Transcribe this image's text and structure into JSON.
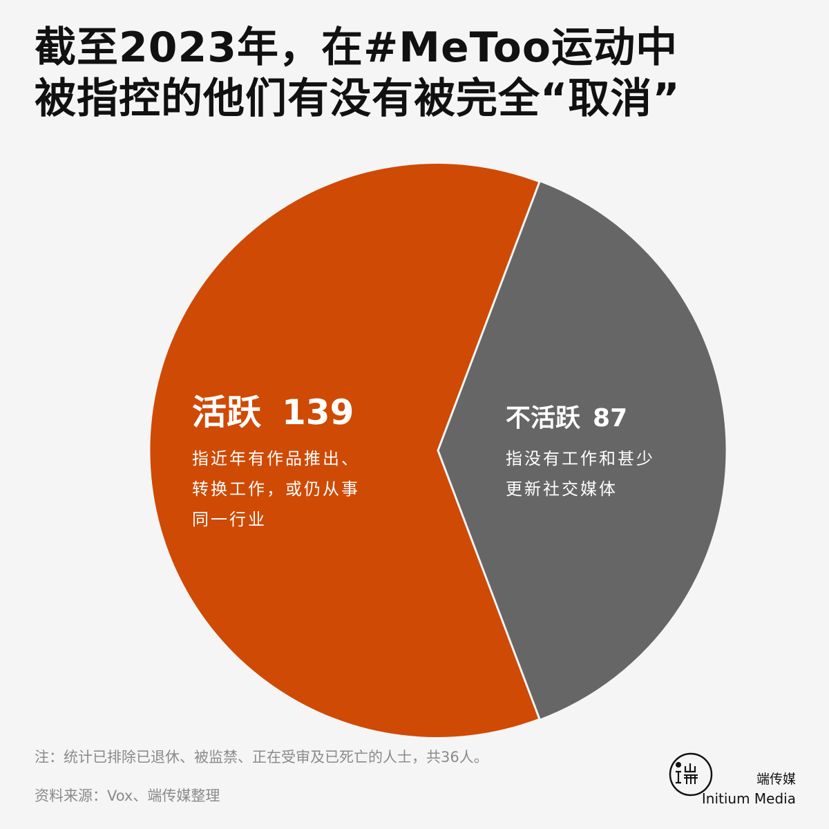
{
  "title": {
    "line1": "截至2023年，在#MeToo运动中",
    "line2": "被指控的他们有没有被完全“取消”"
  },
  "chart_data": {
    "type": "pie",
    "slices": [
      {
        "label": "活跃",
        "value": 139,
        "description_lines": [
          "指近年有作品推出、",
          "转换工作，或仍从事",
          "同一行业"
        ],
        "color": "#cf4a05"
      },
      {
        "label": "不活跃",
        "value": 87,
        "description_lines": [
          "指没有工作和甚少",
          "更新社交媒体"
        ],
        "color": "#666666"
      }
    ]
  },
  "notes": {
    "note": "注：统计已排除已退休、被监禁、正在受审及已死亡的人士，共36人。",
    "source": "资料来源：Vox、端传媒整理"
  },
  "brand": {
    "name_cn": "端传媒",
    "name_en": "Initium Media"
  }
}
